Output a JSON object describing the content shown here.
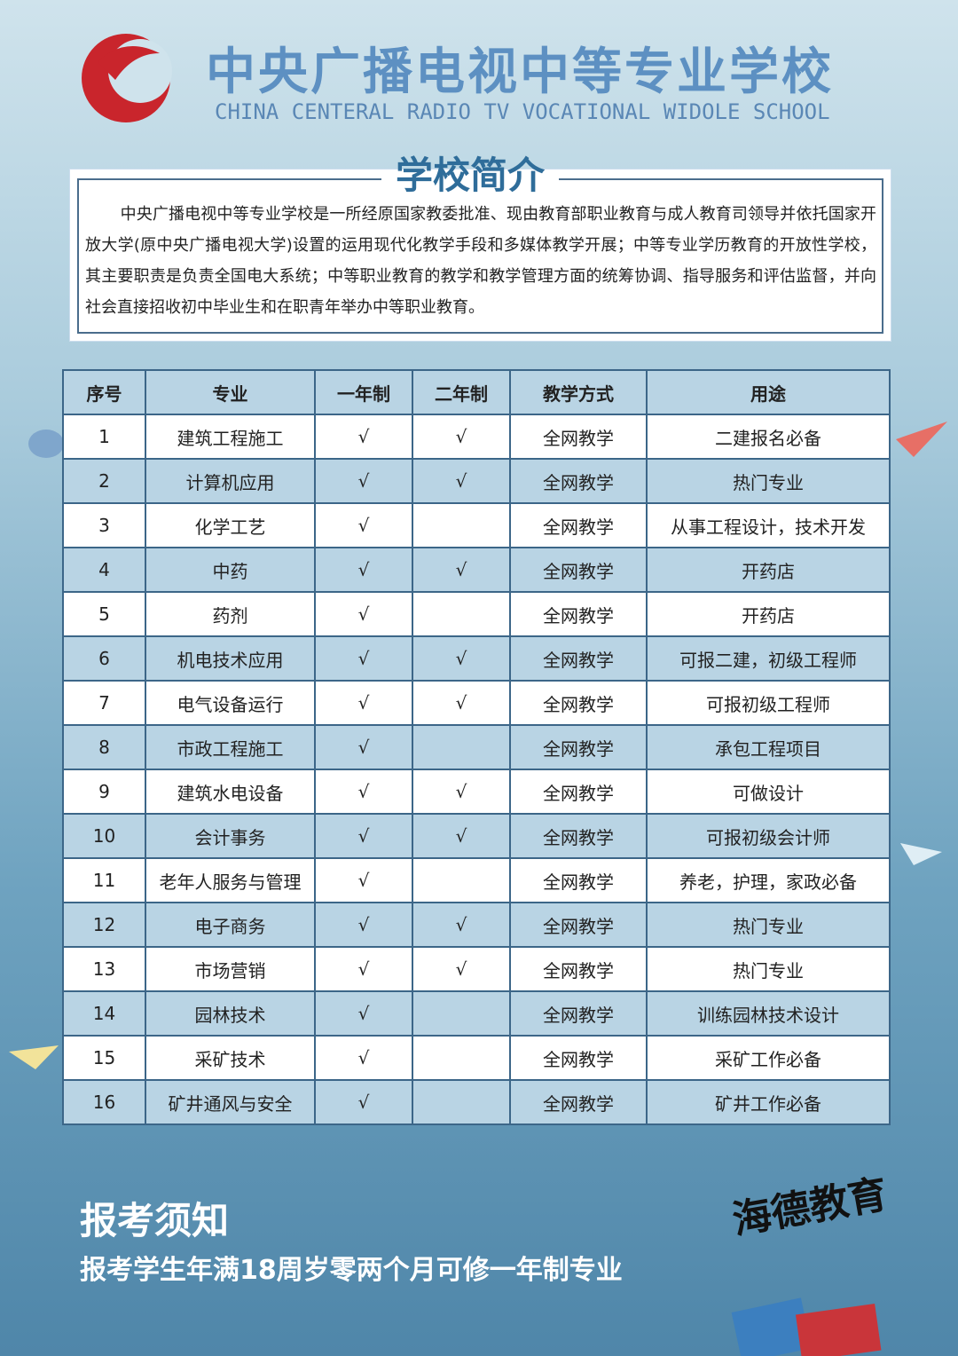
{
  "header": {
    "title": "中央广播电视中等专业学校",
    "subtitle": "CHINA CENTERAL RADIO TV VOCATIONAL WIDOLE SCHOOL"
  },
  "intro": {
    "heading": "学校简介",
    "text": "中央广播电视中等专业学校是一所经原国家教委批准、现由教育部职业教育与成人教育司领导并依托国家开放大学(原中央广播电视大学)设置的运用现代化教学手段和多媒体教学开展；中等专业学历教育的开放性学校，其主要职责是负责全国电大系统；中等职业教育的教学和教学管理方面的统筹协调、指导服务和评估监督，并向社会直接招收初中毕业生和在职青年举办中等职业教育。"
  },
  "table": {
    "columns": [
      "序号",
      "专业",
      "一年制",
      "二年制",
      "教学方式",
      "用途"
    ],
    "rows": [
      [
        "1",
        "建筑工程施工",
        "√",
        "√",
        "全网教学",
        "二建报名必备"
      ],
      [
        "2",
        "计算机应用",
        "√",
        "√",
        "全网教学",
        "热门专业"
      ],
      [
        "3",
        "化学工艺",
        "√",
        null,
        "全网教学",
        "从事工程设计，技术开发"
      ],
      [
        "4",
        "中药",
        "√",
        "√",
        "全网教学",
        "开药店"
      ],
      [
        "5",
        "药剂",
        "√",
        null,
        "全网教学",
        "开药店"
      ],
      [
        "6",
        "机电技术应用",
        "√",
        "√",
        "全网教学",
        "可报二建，初级工程师"
      ],
      [
        "7",
        "电气设备运行",
        "√",
        "√",
        "全网教学",
        "可报初级工程师"
      ],
      [
        "8",
        "市政工程施工",
        "√",
        null,
        "全网教学",
        "承包工程项目"
      ],
      [
        "9",
        "建筑水电设备",
        "√",
        "√",
        "全网教学",
        "可做设计"
      ],
      [
        "10",
        "会计事务",
        "√",
        "√",
        "全网教学",
        "可报初级会计师"
      ],
      [
        "11",
        "老年人服务与管理",
        "√",
        null,
        "全网教学",
        "养老，护理，家政必备"
      ],
      [
        "12",
        "电子商务",
        "√",
        "√",
        "全网教学",
        "热门专业"
      ],
      [
        "13",
        "市场营销",
        "√",
        "√",
        "全网教学",
        "热门专业"
      ],
      [
        "14",
        "园林技术",
        "√",
        null,
        "全网教学",
        "训练园林技术设计"
      ],
      [
        "15",
        "采矿技术",
        "√",
        null,
        "全网教学",
        "采矿工作必备"
      ],
      [
        "16",
        "矿井通风与安全",
        "√",
        null,
        "全网教学",
        "矿井工作必备"
      ]
    ]
  },
  "notice": {
    "heading": "报考须知",
    "text": "报考学生年满18周岁零两个月可修一年制专业"
  },
  "brand": "海德教育"
}
